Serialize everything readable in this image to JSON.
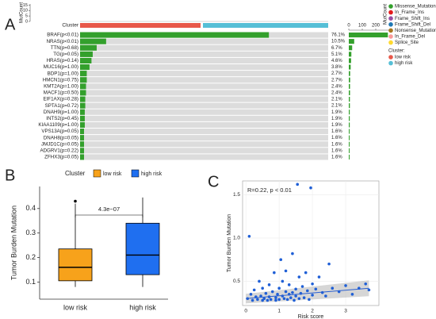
{
  "panels": [
    "A",
    "B",
    "C"
  ],
  "chart_data": [
    {
      "type": "oncoplot",
      "top_axis_label": "MutCount",
      "top_yticks": [
        0,
        5,
        10,
        15
      ],
      "top_ylim": [
        0,
        16
      ],
      "cluster_label": "Cluster",
      "categories": [
        "BRAF(p<0.01)",
        "NRAS(p<0.01)",
        "TTN(p=0.68)",
        "TG(p=0.05)",
        "HRAS(p=0.14)",
        "MUC16(p=1.00)",
        "BDP1(p=1.00)",
        "HMCN1(p=0.75)",
        "KMT2A(p=1.00)",
        "MACF1(p=0.50)",
        "EIF1AX(p=0.28)",
        "SPTA1(p=0.72)",
        "DNAH9(p=1.00)",
        "INTS2(p=0.45)",
        "KIAA1109(p=1.00)",
        "VPS13A(p=0.05)",
        "DNAH8(p=0.05)",
        "JMJD1C(p=0.05)",
        "ADGRV1(p=0.22)",
        "ZFHX3(p=0.05)"
      ],
      "values": [
        76.1,
        10.5,
        6.7,
        5.1,
        4.6,
        3.8,
        2.7,
        2.7,
        2.4,
        2.4,
        2.1,
        2.1,
        1.9,
        1.9,
        1.9,
        1.6,
        1.6,
        1.6,
        1.6,
        1.6
      ],
      "value_labels": [
        "76.1%",
        "10.5%",
        "6.7%",
        "5.1%",
        "4.6%",
        "3.8%",
        "2.7%",
        "2.7%",
        "2.4%",
        "2.4%",
        "2.1%",
        "2.1%",
        "1.9%",
        "1.9%",
        "1.9%",
        "1.6%",
        "1.6%",
        "1.6%",
        "1.6%",
        "1.6%"
      ],
      "color": "#33a02c",
      "counts": [
        290,
        40,
        25,
        19,
        17,
        14,
        10,
        10,
        9,
        9,
        8,
        8,
        7,
        7,
        7,
        6,
        6,
        6,
        6,
        6
      ],
      "count_axis_label": "MutCount",
      "count_ticks": [
        0,
        100,
        200
      ],
      "count_lim": [
        0,
        300
      ],
      "legend": {
        "mutation": [
          "Missense_Mutation",
          "In_Frame_Ins",
          "Frame_Shift_Ins",
          "Frame_Shift_Del",
          "Nonsense_Mutation",
          "In_Frame_Del",
          "Splice_Site"
        ],
        "mutation_colors": [
          "#33a02c",
          "#e31a1c",
          "#984ea3",
          "#1f78b4",
          "#a6761d",
          "#fb9a99",
          "#ffd92f"
        ],
        "cluster_title": "Cluster:",
        "clusters": [
          "low risk",
          "high risk"
        ],
        "cluster_colors": [
          "#e8584a",
          "#56bfd6"
        ]
      }
    },
    {
      "type": "box",
      "legend_title": "Cluster",
      "categories": [
        "low risk",
        "high risk"
      ],
      "series": [
        {
          "name": "low risk",
          "color": "#f7a21b",
          "min": 0.08,
          "q1": 0.105,
          "median": 0.16,
          "q3": 0.235,
          "max": 0.42,
          "outliers": [
            0.43
          ]
        },
        {
          "name": "high risk",
          "color": "#1f6ff0",
          "min": 0.08,
          "q1": 0.13,
          "median": 0.21,
          "q3": 0.34,
          "max": 0.445,
          "outliers": []
        }
      ],
      "annotation": "4.3e−07",
      "ylabel": "Tumor Burden Mutation",
      "ylim": [
        0.03,
        0.49
      ],
      "yticks": [
        0.1,
        0.2,
        0.3,
        0.4
      ]
    },
    {
      "type": "scatter",
      "annotation": "R=0.22, p < 0.01",
      "xlabel": "Risk score",
      "ylabel": "Tumor Burden Mutation",
      "x": [
        0.05,
        0.1,
        0.15,
        0.2,
        0.25,
        0.3,
        0.35,
        0.4,
        0.45,
        0.5,
        0.5,
        0.55,
        0.6,
        0.65,
        0.7,
        0.7,
        0.75,
        0.8,
        0.85,
        0.9,
        0.9,
        0.95,
        1.0,
        1.0,
        1.05,
        1.1,
        1.1,
        1.15,
        1.2,
        1.2,
        1.25,
        1.3,
        1.3,
        1.35,
        1.4,
        1.4,
        1.45,
        1.5,
        1.5,
        1.55,
        1.6,
        1.6,
        1.65,
        1.7,
        1.75,
        1.8,
        1.85,
        1.9,
        1.95,
        2.0,
        2.0,
        2.1,
        2.2,
        2.3,
        2.4,
        2.5,
        2.6,
        2.8,
        3.0,
        3.2,
        3.4,
        3.6,
        3.7
      ],
      "values": [
        0.3,
        1.02,
        0.35,
        0.28,
        0.4,
        0.32,
        0.29,
        0.5,
        0.33,
        0.28,
        0.42,
        0.3,
        0.36,
        0.28,
        0.46,
        0.32,
        0.29,
        0.38,
        0.6,
        0.31,
        0.28,
        0.35,
        0.42,
        0.29,
        0.75,
        0.33,
        0.5,
        0.3,
        0.38,
        0.62,
        0.29,
        0.35,
        0.46,
        0.31,
        0.82,
        0.37,
        0.28,
        0.41,
        0.33,
        1.62,
        0.55,
        0.3,
        0.36,
        0.44,
        0.31,
        0.6,
        0.39,
        0.29,
        1.58,
        0.47,
        0.34,
        0.41,
        0.55,
        0.37,
        0.33,
        0.7,
        0.42,
        0.38,
        0.45,
        0.35,
        0.42,
        0.47,
        0.4
      ],
      "color": "#1f5fd6",
      "fit": {
        "x": [
          0,
          3.7
        ],
        "y": [
          0.3,
          0.42
        ]
      },
      "xlim": [
        -0.1,
        4
      ],
      "ylim": [
        0.22,
        1.66
      ],
      "xticks": [
        0,
        1,
        2,
        3
      ],
      "yticks": [
        0.5,
        {
          "value": 1,
          "label": "1.0"
        },
        1.5
      ],
      "grid": true
    }
  ]
}
